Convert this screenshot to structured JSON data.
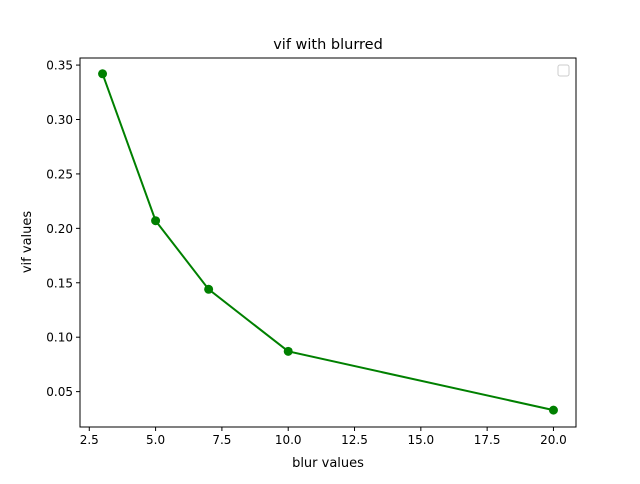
{
  "chart_data": {
    "type": "line",
    "title": "vif with blurred",
    "xlabel": "blur values",
    "ylabel": "vif values",
    "x": [
      3,
      5,
      7,
      10,
      20
    ],
    "series": [
      {
        "values": [
          0.342,
          0.207,
          0.144,
          0.087,
          0.033
        ],
        "color": "#008000",
        "marker": "circle"
      }
    ],
    "xlim": [
      2.15,
      20.85
    ],
    "ylim": [
      0.0175,
      0.3565
    ],
    "xticks": [
      2.5,
      5.0,
      7.5,
      10.0,
      12.5,
      15.0,
      17.5,
      20.0
    ],
    "xtick_labels": [
      "2.5",
      "5.0",
      "7.5",
      "10.0",
      "12.5",
      "15.0",
      "17.5",
      "20.0"
    ],
    "yticks": [
      0.05,
      0.1,
      0.15,
      0.2,
      0.25,
      0.3,
      0.35
    ],
    "ytick_labels": [
      "0.05",
      "0.10",
      "0.15",
      "0.20",
      "0.25",
      "0.30",
      "0.35"
    ],
    "grid": false,
    "legend": "upper-right (empty)"
  }
}
